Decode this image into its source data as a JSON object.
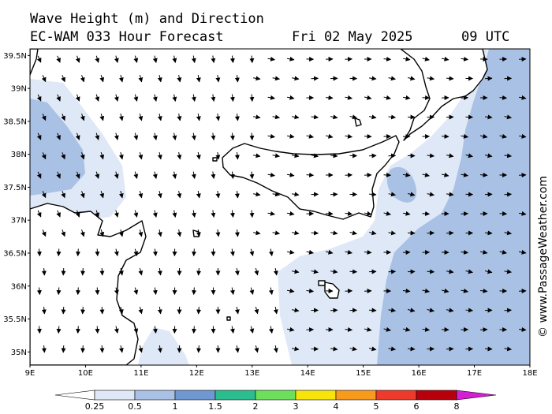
{
  "title": {
    "line1": "Wave Height (m) and Direction",
    "line2": "EC-WAM 033 Hour Forecast",
    "date": "Fri 02 May 2025",
    "time": "09 UTC"
  },
  "watermark": "© www.PassageWeather.com",
  "axes": {
    "lat_labels": [
      "39.5N",
      "39N",
      "38.5N",
      "38N",
      "37.5N",
      "37N",
      "36.5N",
      "36N",
      "35.5N",
      "35N"
    ],
    "lon_labels": [
      "9E",
      "10E",
      "11E",
      "12E",
      "13E",
      "14E",
      "15E",
      "16E",
      "17E",
      "18E"
    ],
    "lat_range": [
      34.8,
      39.6
    ],
    "lon_range": [
      9,
      18
    ]
  },
  "legend": {
    "labels": [
      "0.25",
      "0.5",
      "1",
      "1.5",
      "2",
      "3",
      "4",
      "5",
      "6",
      "8"
    ],
    "colors": [
      "#ffffff",
      "#dfe8f6",
      "#a9c1e4",
      "#6f97d2",
      "#2bbd8e",
      "#6ce05a",
      "#f7e40a",
      "#f89a1c",
      "#ee3a2b",
      "#b8000c",
      "#d41fd2"
    ]
  },
  "colors": {
    "sea_calm": "#ffffff",
    "sea_025": "#dfe8f6",
    "sea_05": "#a9c1e4",
    "land": "#ffffff",
    "coast": "#000000"
  }
}
